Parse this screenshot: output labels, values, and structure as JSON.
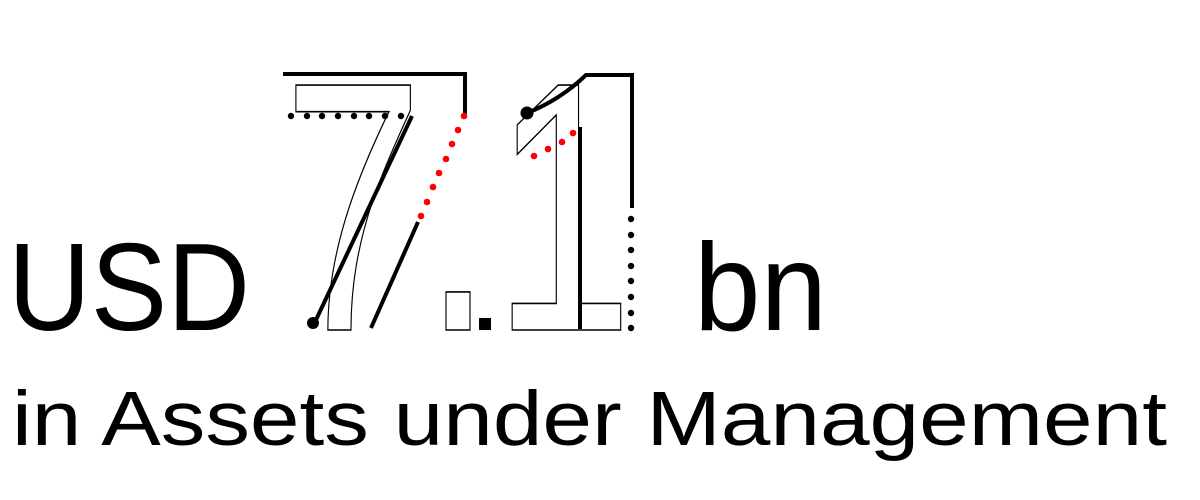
{
  "headline": {
    "currency": "USD",
    "value": "7.1",
    "unit": "bn",
    "caption": "in Assets under Management"
  },
  "colors": {
    "ink": "#000000",
    "accent": "#ff0000",
    "background": "#ffffff"
  }
}
